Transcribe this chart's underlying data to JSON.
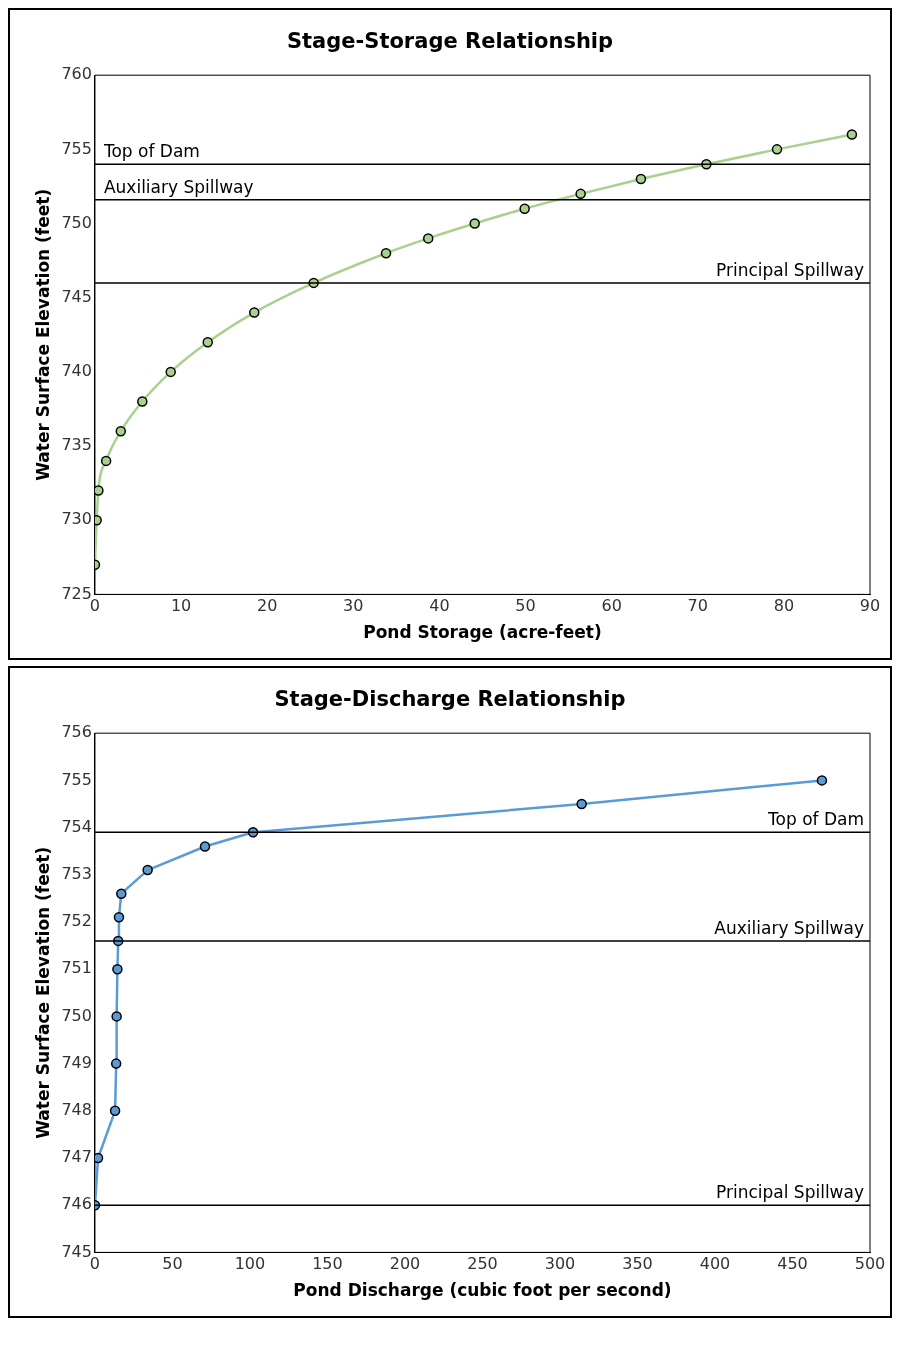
{
  "chart_data": [
    {
      "type": "line",
      "title": "Stage-Storage Relationship",
      "xlabel": "Pond Storage (acre-feet)",
      "ylabel": "Water Surface Elevation (feet)",
      "series": [
        {
          "color": "#a9d18e",
          "x": [
            0,
            0.2,
            0.4,
            1.3,
            3,
            5.5,
            8.8,
            13.1,
            18.5,
            25.4,
            33.8,
            38.7,
            44.1,
            49.9,
            56.4,
            63.4,
            71,
            79.2,
            87.9
          ],
          "values": [
            727,
            730,
            732,
            734,
            736,
            738,
            740,
            742,
            744,
            746,
            748,
            749,
            750,
            751,
            752,
            753,
            754,
            755,
            756
          ]
        }
      ],
      "xlim": [
        0,
        90
      ],
      "xticks": [
        0,
        10,
        20,
        30,
        40,
        50,
        60,
        70,
        80,
        90
      ],
      "ylim": [
        725,
        760
      ],
      "yticks": [
        725,
        730,
        735,
        740,
        745,
        750,
        755,
        760
      ],
      "ref_lines": [
        {
          "axis": "y",
          "value": 754,
          "label": "Top of Dam"
        },
        {
          "axis": "y",
          "value": 751.6,
          "label": "Auxiliary Spillway"
        },
        {
          "axis": "y",
          "value": 746,
          "label": "Principal Spillway"
        }
      ],
      "marker": "circle",
      "line_style": "solid",
      "grid": false,
      "legend": false
    },
    {
      "type": "line",
      "title": "Stage-Discharge Relationship",
      "xlabel": "Pond Discharge (cubic foot per second)",
      "ylabel": "Water Surface Elevation (feet)",
      "series": [
        {
          "color": "#5b9bd5",
          "x": [
            0,
            2,
            13,
            13.7,
            14,
            14.5,
            15,
            15.5,
            17,
            34,
            71,
            102,
            314,
            469
          ],
          "values": [
            746,
            747,
            748,
            749,
            750,
            751,
            751.6,
            752.1,
            752.6,
            753.1,
            753.6,
            753.9,
            754.5,
            755
          ]
        }
      ],
      "xlim": [
        0,
        500
      ],
      "xticks": [
        0,
        50,
        100,
        150,
        200,
        250,
        300,
        350,
        400,
        450,
        500
      ],
      "ylim": [
        745,
        756
      ],
      "yticks": [
        745,
        746,
        747,
        748,
        749,
        750,
        751,
        752,
        753,
        754,
        755,
        756
      ],
      "ref_lines": [
        {
          "axis": "y",
          "value": 753.9,
          "label": "Top of Dam"
        },
        {
          "axis": "y",
          "value": 751.6,
          "label": "Auxiliary Spillway"
        },
        {
          "axis": "y",
          "value": 746,
          "label": "Principal Spillway"
        }
      ],
      "marker": "circle",
      "line_style": "solid",
      "grid": false,
      "legend": false
    }
  ]
}
